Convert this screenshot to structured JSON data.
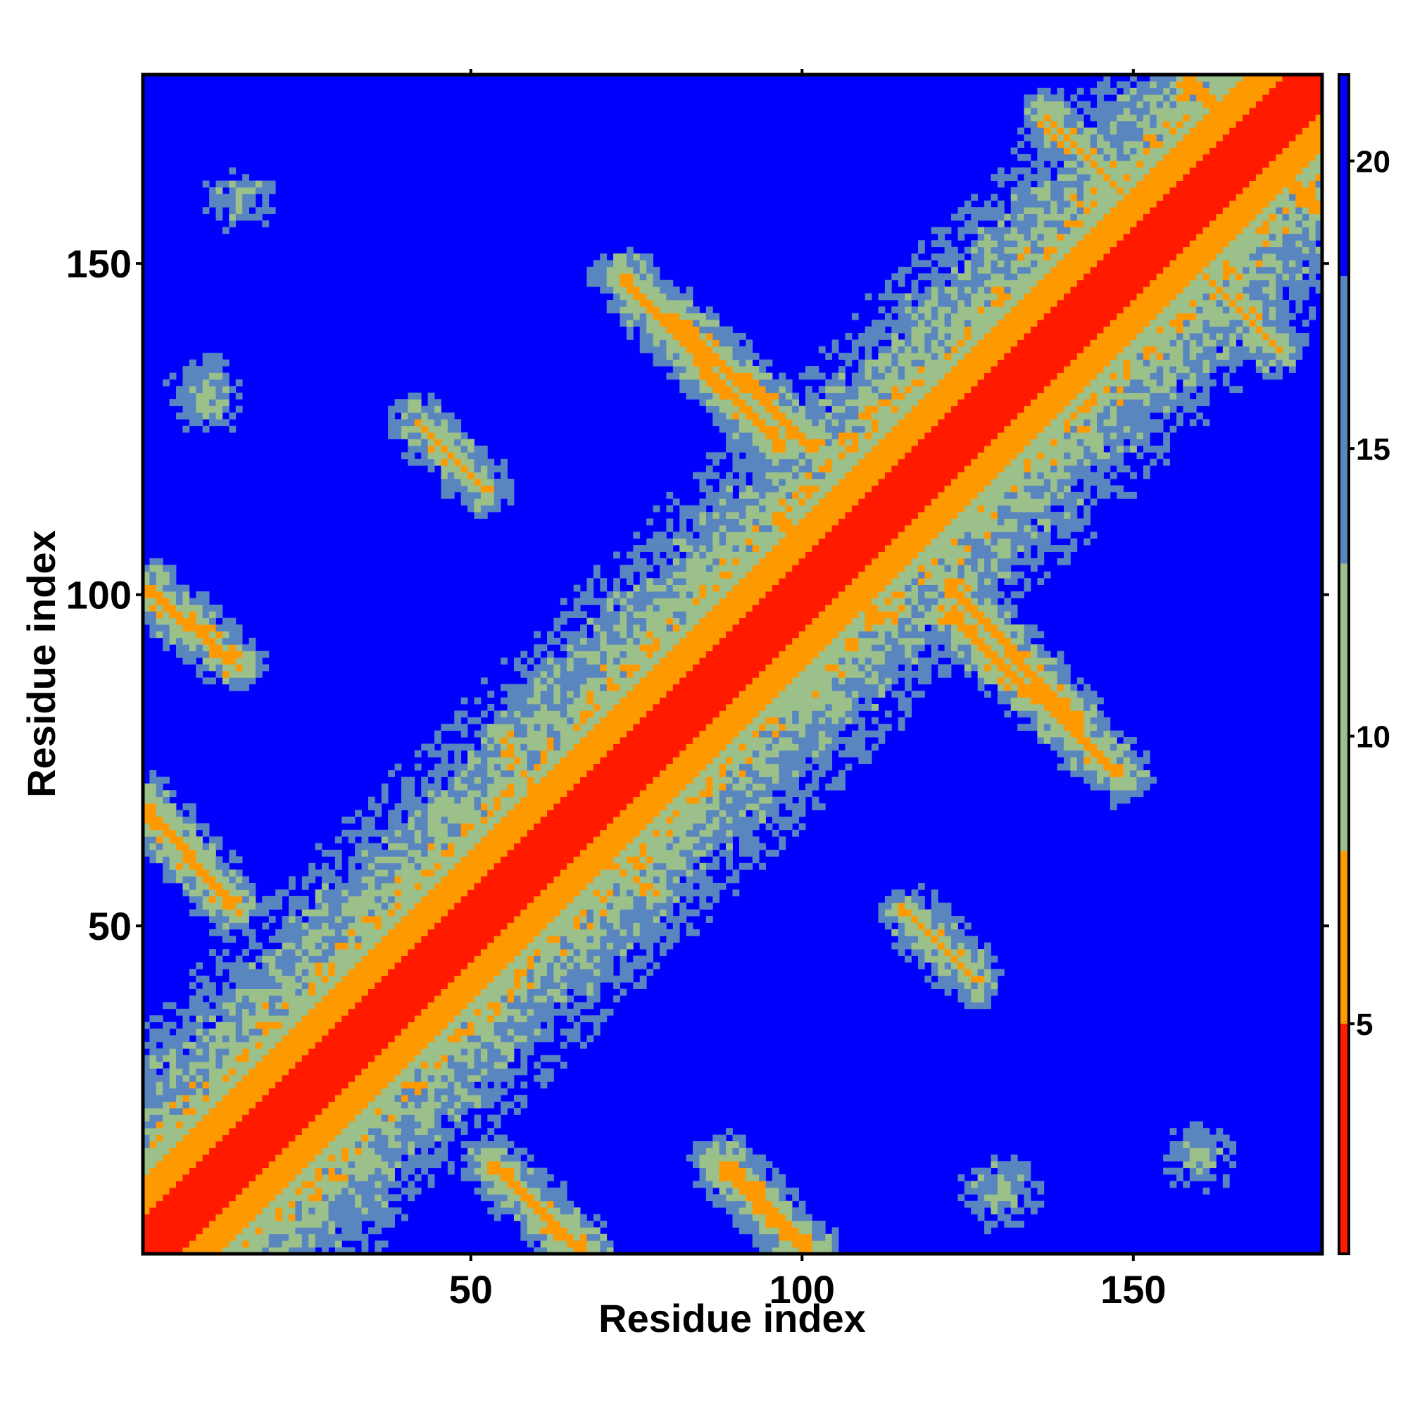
{
  "chart_data": {
    "type": "heatmap",
    "xlabel": "Residue index",
    "ylabel": "Residue index",
    "xlim": [
      1,
      178
    ],
    "ylim": [
      1,
      178
    ],
    "x_ticks": [
      50,
      100,
      150
    ],
    "y_ticks": [
      50,
      100,
      150
    ],
    "x_tick_labels": [
      "50",
      "100",
      "150"
    ],
    "y_tick_labels": [
      "50",
      "100",
      "150"
    ],
    "colorbar": {
      "range": [
        1,
        21.5
      ],
      "ticks": [
        5,
        10,
        15,
        20
      ],
      "tick_labels": [
        "5",
        "10",
        "15",
        "20"
      ],
      "colors": [
        {
          "from": 1,
          "to": 5,
          "color": "#ff1a00"
        },
        {
          "from": 5,
          "to": 8,
          "color": "#ff9900"
        },
        {
          "from": 8,
          "to": 13,
          "color": "#9cc08a"
        },
        {
          "from": 13,
          "to": 18,
          "color": "#5a86c0"
        },
        {
          "from": 18,
          "to": 21.5,
          "color": "#0000ff"
        }
      ]
    },
    "description_of_values": "symmetric residue-residue distance map; main diagonal has lowest values",
    "features": [
      {
        "kind": "diagonal",
        "from": [
          1,
          1
        ],
        "to": [
          178,
          178
        ],
        "value": 2
      },
      {
        "kind": "anti",
        "from": [
          1,
          68
        ],
        "to": [
          14,
          53
        ],
        "value": 6
      },
      {
        "kind": "anti",
        "from": [
          1,
          101
        ],
        "to": [
          14,
          90
        ],
        "value": 6
      },
      {
        "kind": "anti",
        "from": [
          53,
          14
        ],
        "to": [
          67,
          1
        ],
        "value": 6
      },
      {
        "kind": "anti",
        "from": [
          88,
          14
        ],
        "to": [
          101,
          1
        ],
        "value": 6
      },
      {
        "kind": "anti",
        "from": [
          73,
          148
        ],
        "to": [
          97,
          122
        ],
        "value": 6
      },
      {
        "kind": "anti",
        "from": [
          148,
          73
        ],
        "to": [
          122,
          97
        ],
        "value": 6
      },
      {
        "kind": "anti",
        "from": [
          122,
          102
        ],
        "to": [
          142,
          80
        ],
        "value": 6
      },
      {
        "kind": "anti",
        "from": [
          102,
          122
        ],
        "to": [
          80,
          142
        ],
        "value": 6
      },
      {
        "kind": "anti",
        "from": [
          158,
          178
        ],
        "to": [
          178,
          158
        ],
        "value": 6
      },
      {
        "kind": "anti",
        "from": [
          137,
          172
        ],
        "to": [
          172,
          137
        ],
        "value": 7
      },
      {
        "kind": "anti",
        "from": [
          42,
          126
        ],
        "to": [
          52,
          116
        ],
        "value": 7
      },
      {
        "kind": "anti",
        "from": [
          126,
          42
        ],
        "to": [
          116,
          52
        ],
        "value": 7
      },
      {
        "kind": "anti",
        "from": [
          55,
          78
        ],
        "to": [
          60,
          70
        ],
        "value": 7
      },
      {
        "kind": "anti",
        "from": [
          78,
          55
        ],
        "to": [
          70,
          60
        ],
        "value": 7
      },
      {
        "kind": "anti",
        "from": [
          105,
          103
        ],
        "to": [
          112,
          96
        ],
        "value": 6
      },
      {
        "kind": "anti",
        "from": [
          103,
          105
        ],
        "to": [
          96,
          112
        ],
        "value": 6
      },
      {
        "kind": "blob",
        "center": [
          24,
          24
        ],
        "value": 6
      },
      {
        "kind": "blob",
        "center": [
          38,
          38
        ],
        "value": 6
      },
      {
        "kind": "blob",
        "center": [
          10,
          130
        ],
        "value": 10
      },
      {
        "kind": "blob",
        "center": [
          130,
          10
        ],
        "value": 10
      },
      {
        "kind": "blob",
        "center": [
          15,
          160
        ],
        "value": 11
      },
      {
        "kind": "blob",
        "center": [
          160,
          15
        ],
        "value": 11
      }
    ]
  }
}
